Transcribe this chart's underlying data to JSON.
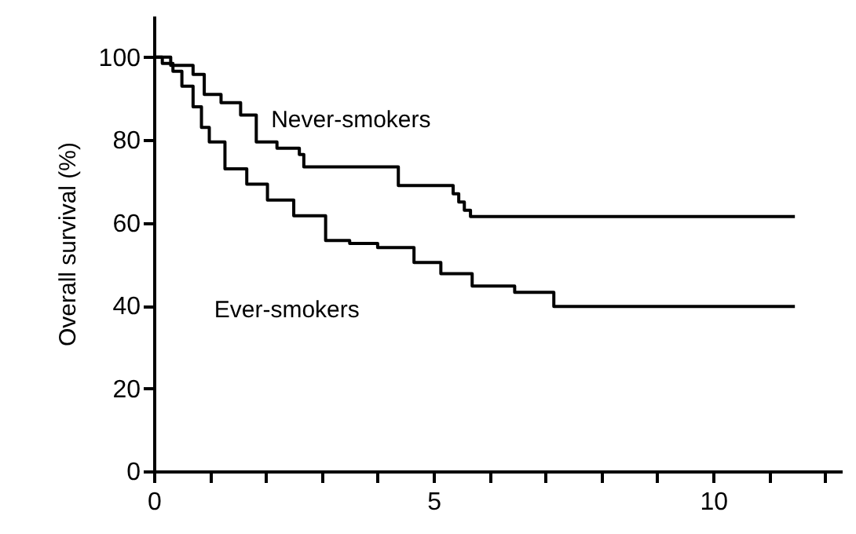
{
  "chart_data": {
    "type": "step",
    "ylabel": "Overall survival (%)",
    "xlim": [
      0,
      12.3
    ],
    "ylim": [
      0,
      110
    ],
    "xticks": [
      0,
      {
        "value": 1,
        "label": null
      },
      {
        "value": 2,
        "label": null
      },
      {
        "value": 3,
        "label": null
      },
      {
        "value": 4,
        "label": null
      },
      5,
      {
        "value": 6,
        "label": null
      },
      {
        "value": 7,
        "label": null
      },
      {
        "value": 8,
        "label": null
      },
      {
        "value": 9,
        "label": null
      },
      10,
      {
        "value": 11,
        "label": null
      },
      {
        "value": 12,
        "label": null
      }
    ],
    "yticks": [
      0,
      20,
      40,
      60,
      80,
      100
    ],
    "grid": false,
    "legend": false,
    "marker": "none",
    "line_style": "solid",
    "series": [
      {
        "name": "Never-smokers",
        "color": "#000000",
        "x": [
          0,
          0.3,
          0.7,
          0.9,
          1.2,
          1.55,
          1.83,
          2.2,
          2.6,
          2.68,
          4.37,
          5.35,
          5.45,
          5.55,
          5.66,
          11.46
        ],
        "values": [
          100,
          98,
          95.8,
          91,
          89,
          86,
          79.5,
          78,
          76.5,
          73.5,
          69,
          67,
          65,
          63,
          61.5,
          61.5
        ]
      },
      {
        "name": "Ever-smokers",
        "color": "#000000",
        "x": [
          0,
          0.15,
          0.34,
          0.5,
          0.7,
          0.85,
          0.99,
          1.27,
          1.66,
          2.03,
          2.5,
          3.07,
          3.5,
          4.0,
          4.65,
          5.13,
          5.69,
          6.45,
          7.15,
          11.46
        ],
        "values": [
          100,
          98.5,
          96.6,
          93,
          88,
          83,
          79.5,
          73,
          69.3,
          65.5,
          61.7,
          55.7,
          55,
          54,
          50.4,
          47.7,
          44.7,
          43.2,
          39.8,
          39.8
        ]
      }
    ]
  }
}
